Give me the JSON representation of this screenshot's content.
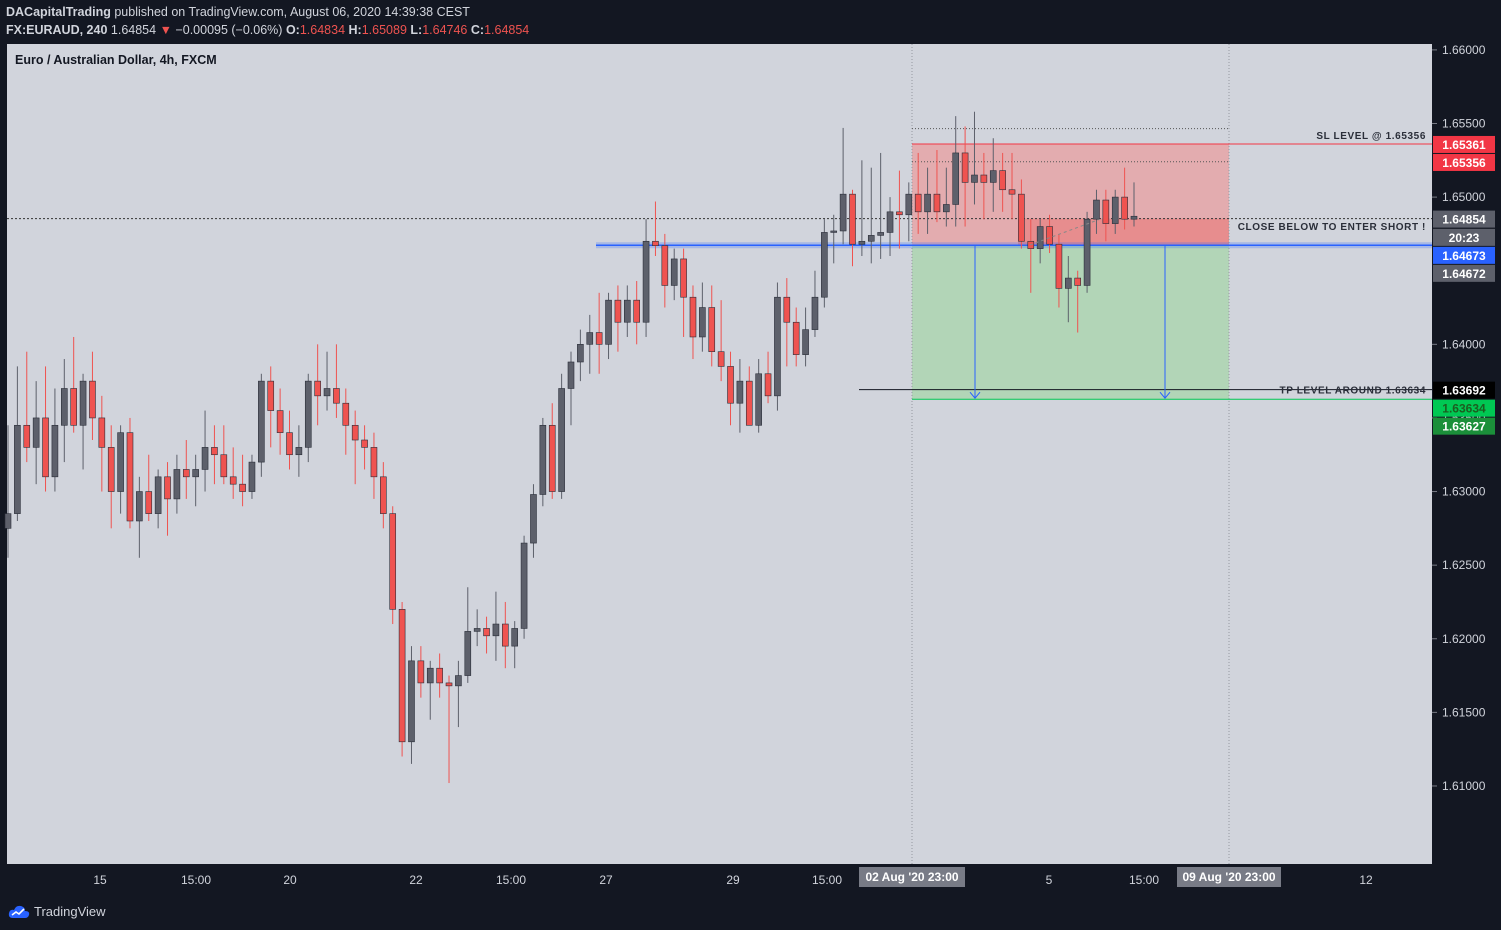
{
  "header": {
    "author": "DACapitalTrading",
    "published": "published on TradingView.com, August 06, 2020 14:39:38 CEST",
    "symbol": "FX:EURAUD, 240",
    "last": "1.64854",
    "change": "−0.00095 (−0.06%)",
    "o_label": "O:",
    "o": "1.64834",
    "h_label": "H:",
    "h": "1.65089",
    "l_label": "L:",
    "l": "1.64746",
    "c_label": "C:",
    "c": "1.64854"
  },
  "chart_title": "Euro / Australian Dollar, 4h, FXCM",
  "footer": {
    "brand": "TradingView"
  },
  "colors": {
    "up": "#5d606b",
    "down": "#ef5350",
    "bg": "#d1d4dc",
    "axis_bg": "#131722",
    "zone_red": "#f28b8b",
    "zone_green": "#a5d6a7",
    "blue_line": "#2962ff"
  },
  "chart_data": {
    "type": "candlestick",
    "title": "Euro / Australian Dollar, 4h, FXCM",
    "ylim": [
      1.6047,
      1.6604
    ],
    "y_ticks": [
      "1.66000",
      "1.65500",
      "1.65000",
      "1.64000",
      "1.63500",
      "1.63000",
      "1.62500",
      "1.62000",
      "1.61500",
      "1.61000"
    ],
    "x_ticks": [
      "15",
      "15:00",
      "20",
      "22",
      "15:00",
      "27",
      "29",
      "15:00",
      "Aug",
      "5",
      "15:00",
      "12"
    ],
    "x_highlight": [
      "02 Aug '20   23:00",
      "09 Aug '20   23:00"
    ],
    "candles": [
      [
        1.6275,
        1.6345,
        1.6255,
        1.6285
      ],
      [
        1.6285,
        1.6385,
        1.628,
        1.6345
      ],
      [
        1.6345,
        1.6395,
        1.632,
        1.633
      ],
      [
        1.633,
        1.6375,
        1.6305,
        1.635
      ],
      [
        1.635,
        1.6385,
        1.63,
        1.631
      ],
      [
        1.631,
        1.637,
        1.63,
        1.6345
      ],
      [
        1.6345,
        1.639,
        1.632,
        1.637
      ],
      [
        1.637,
        1.6405,
        1.634,
        1.6345
      ],
      [
        1.6345,
        1.638,
        1.6315,
        1.6375
      ],
      [
        1.6375,
        1.6395,
        1.6335,
        1.635
      ],
      [
        1.635,
        1.6365,
        1.63,
        1.633
      ],
      [
        1.633,
        1.6345,
        1.6275,
        1.63
      ],
      [
        1.63,
        1.6345,
        1.6285,
        1.634
      ],
      [
        1.634,
        1.635,
        1.6275,
        1.628
      ],
      [
        1.628,
        1.631,
        1.6255,
        1.63
      ],
      [
        1.63,
        1.6325,
        1.628,
        1.6285
      ],
      [
        1.6285,
        1.6315,
        1.6275,
        1.631
      ],
      [
        1.631,
        1.632,
        1.627,
        1.6295
      ],
      [
        1.6295,
        1.6325,
        1.6285,
        1.6315
      ],
      [
        1.6315,
        1.6335,
        1.6295,
        1.631
      ],
      [
        1.631,
        1.6325,
        1.629,
        1.6315
      ],
      [
        1.6315,
        1.6355,
        1.63,
        1.633
      ],
      [
        1.633,
        1.6345,
        1.6305,
        1.6325
      ],
      [
        1.6325,
        1.6345,
        1.6305,
        1.631
      ],
      [
        1.631,
        1.633,
        1.6295,
        1.6305
      ],
      [
        1.6305,
        1.6325,
        1.629,
        1.63
      ],
      [
        1.63,
        1.6325,
        1.6295,
        1.632
      ],
      [
        1.632,
        1.638,
        1.631,
        1.6375
      ],
      [
        1.6375,
        1.6385,
        1.633,
        1.6355
      ],
      [
        1.6355,
        1.637,
        1.6325,
        1.634
      ],
      [
        1.634,
        1.6355,
        1.6315,
        1.6325
      ],
      [
        1.6325,
        1.6345,
        1.631,
        1.633
      ],
      [
        1.633,
        1.638,
        1.632,
        1.6375
      ],
      [
        1.6375,
        1.64,
        1.6345,
        1.6365
      ],
      [
        1.6365,
        1.6395,
        1.6355,
        1.637
      ],
      [
        1.637,
        1.64,
        1.635,
        1.636
      ],
      [
        1.636,
        1.637,
        1.6325,
        1.6345
      ],
      [
        1.6345,
        1.6355,
        1.6305,
        1.6335
      ],
      [
        1.6335,
        1.6345,
        1.6315,
        1.633
      ],
      [
        1.633,
        1.634,
        1.6295,
        1.631
      ],
      [
        1.631,
        1.632,
        1.6275,
        1.6285
      ],
      [
        1.6285,
        1.629,
        1.621,
        1.622
      ],
      [
        1.622,
        1.6225,
        1.612,
        1.613
      ],
      [
        1.613,
        1.6195,
        1.6115,
        1.6185
      ],
      [
        1.6185,
        1.6195,
        1.616,
        1.617
      ],
      [
        1.617,
        1.6185,
        1.6145,
        1.618
      ],
      [
        1.618,
        1.619,
        1.616,
        1.617
      ],
      [
        1.617,
        1.6175,
        1.6102,
        1.6168
      ],
      [
        1.6168,
        1.6185,
        1.614,
        1.6175
      ],
      [
        1.6175,
        1.6235,
        1.617,
        1.6205
      ],
      [
        1.6205,
        1.622,
        1.6195,
        1.6207
      ],
      [
        1.6207,
        1.6215,
        1.619,
        1.6202
      ],
      [
        1.6202,
        1.6232,
        1.6185,
        1.621
      ],
      [
        1.621,
        1.6225,
        1.618,
        1.6195
      ],
      [
        1.6195,
        1.6212,
        1.618,
        1.6207
      ],
      [
        1.6207,
        1.627,
        1.62,
        1.6265
      ],
      [
        1.6265,
        1.6305,
        1.6255,
        1.6298
      ],
      [
        1.6298,
        1.635,
        1.629,
        1.6345
      ],
      [
        1.6345,
        1.636,
        1.6295,
        1.63
      ],
      [
        1.63,
        1.638,
        1.6295,
        1.637
      ],
      [
        1.637,
        1.6395,
        1.6345,
        1.6388
      ],
      [
        1.6388,
        1.641,
        1.6375,
        1.64
      ],
      [
        1.64,
        1.642,
        1.638,
        1.6408
      ],
      [
        1.6408,
        1.6435,
        1.638,
        1.64
      ],
      [
        1.64,
        1.6435,
        1.639,
        1.643
      ],
      [
        1.643,
        1.644,
        1.6395,
        1.6415
      ],
      [
        1.6415,
        1.644,
        1.6405,
        1.643
      ],
      [
        1.643,
        1.6443,
        1.64,
        1.6415
      ],
      [
        1.6415,
        1.6485,
        1.6405,
        1.647
      ],
      [
        1.647,
        1.6497,
        1.646,
        1.6467
      ],
      [
        1.6467,
        1.6475,
        1.6425,
        1.644
      ],
      [
        1.644,
        1.6465,
        1.643,
        1.6458
      ],
      [
        1.6458,
        1.6465,
        1.6405,
        1.6432
      ],
      [
        1.6432,
        1.644,
        1.639,
        1.6405
      ],
      [
        1.6405,
        1.6442,
        1.6395,
        1.6425
      ],
      [
        1.6425,
        1.644,
        1.6385,
        1.6395
      ],
      [
        1.6395,
        1.643,
        1.6375,
        1.6385
      ],
      [
        1.6385,
        1.6395,
        1.6345,
        1.636
      ],
      [
        1.636,
        1.639,
        1.634,
        1.6375
      ],
      [
        1.6375,
        1.6385,
        1.6345,
        1.6345
      ],
      [
        1.6345,
        1.639,
        1.634,
        1.638
      ],
      [
        1.638,
        1.6395,
        1.636,
        1.6365
      ],
      [
        1.6365,
        1.6442,
        1.6355,
        1.6432
      ],
      [
        1.6432,
        1.6445,
        1.6385,
        1.6415
      ],
      [
        1.6415,
        1.6425,
        1.6385,
        1.6393
      ],
      [
        1.6393,
        1.6425,
        1.6385,
        1.641
      ],
      [
        1.641,
        1.645,
        1.6405,
        1.6432
      ],
      [
        1.6432,
        1.6485,
        1.6425,
        1.6476
      ],
      [
        1.6476,
        1.6488,
        1.6455,
        1.6477
      ],
      [
        1.6477,
        1.6547,
        1.6468,
        1.6502
      ],
      [
        1.6502,
        1.6505,
        1.6453,
        1.6468
      ],
      [
        1.6468,
        1.6525,
        1.646,
        1.647
      ],
      [
        1.647,
        1.652,
        1.6455,
        1.6474
      ],
      [
        1.6474,
        1.653,
        1.6458,
        1.6476
      ],
      [
        1.6476,
        1.65,
        1.646,
        1.649
      ],
      [
        1.649,
        1.6518,
        1.6465,
        1.6488
      ],
      [
        1.6488,
        1.651,
        1.647,
        1.6502
      ],
      [
        1.6502,
        1.653,
        1.6475,
        1.649
      ],
      [
        1.649,
        1.652,
        1.6475,
        1.6502
      ],
      [
        1.6502,
        1.6532,
        1.6483,
        1.649
      ],
      [
        1.649,
        1.652,
        1.648,
        1.6495
      ],
      [
        1.6495,
        1.6555,
        1.648,
        1.653
      ],
      [
        1.653,
        1.6548,
        1.648,
        1.651
      ],
      [
        1.651,
        1.6558,
        1.6495,
        1.6515
      ],
      [
        1.6515,
        1.653,
        1.6485,
        1.651
      ],
      [
        1.651,
        1.654,
        1.649,
        1.6518
      ],
      [
        1.6518,
        1.653,
        1.649,
        1.6505
      ],
      [
        1.6505,
        1.653,
        1.6485,
        1.6502
      ],
      [
        1.6502,
        1.6512,
        1.6465,
        1.647
      ],
      [
        1.647,
        1.6485,
        1.6435,
        1.6465
      ],
      [
        1.6465,
        1.6485,
        1.6455,
        1.648
      ],
      [
        1.648,
        1.6488,
        1.6462,
        1.6468
      ],
      [
        1.6468,
        1.6475,
        1.6425,
        1.6438
      ],
      [
        1.6438,
        1.646,
        1.6415,
        1.6445
      ],
      [
        1.6445,
        1.645,
        1.6408,
        1.644
      ],
      [
        1.644,
        1.649,
        1.6435,
        1.6485
      ],
      [
        1.6485,
        1.6505,
        1.6475,
        1.6498
      ],
      [
        1.6498,
        1.6505,
        1.647,
        1.6482
      ],
      [
        1.6482,
        1.6505,
        1.6475,
        1.65
      ],
      [
        1.65,
        1.652,
        1.6478,
        1.6485
      ],
      [
        1.6485,
        1.651,
        1.648,
        1.6487
      ]
    ],
    "annotations": [
      {
        "text": "SL LEVEL @ 1.65356",
        "price": 1.65361
      },
      {
        "text": "CLOSE BELOW TO ENTER SHORT !",
        "price": 1.64673
      },
      {
        "text": "TP LEVEL AROUND 1.63634",
        "price": 1.63692
      }
    ],
    "price_labels": [
      {
        "text": "1.65361",
        "price": 1.65361,
        "color": "#f23645"
      },
      {
        "text": "1.65356",
        "price": 1.65356,
        "color": "#f23645"
      },
      {
        "text": "1.64854",
        "price": 1.64854,
        "color": "#5d606b"
      },
      {
        "text": "20:23",
        "price": 1.6473,
        "color": "#5d606b"
      },
      {
        "text": "1.64673",
        "price": 1.64673,
        "color": "#2962ff"
      },
      {
        "text": "1.64672",
        "price": 1.64672,
        "color": "#5d606b"
      },
      {
        "text": "1.63692",
        "price": 1.63692,
        "color": "#000000"
      },
      {
        "text": "1.63634",
        "price": 1.63634,
        "color": "#00c853"
      },
      {
        "text": "1.63627",
        "price": 1.63627,
        "color": "#1b8f3a"
      }
    ],
    "zones": {
      "sl": 1.65361,
      "entry": 1.64673,
      "tp": 1.63627,
      "current": 1.64854
    }
  }
}
